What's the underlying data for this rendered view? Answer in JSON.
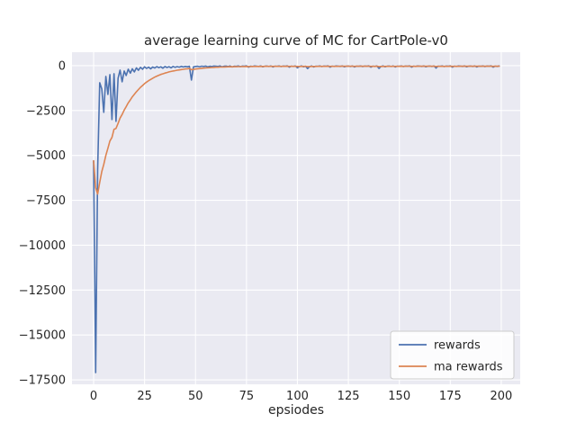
{
  "chart_data": {
    "type": "line",
    "title": "average learning curve of MC for CartPole-v0",
    "xlabel": "epsiodes",
    "ylabel": "",
    "grid": true,
    "axes_background": "#EAEAF2",
    "grid_color": "#FFFFFF",
    "text_color": "#262626",
    "xlim": [
      -10.6,
      209.3
    ],
    "ylim": [
      -17750,
      750
    ],
    "x_ticks": [
      0,
      25,
      50,
      75,
      100,
      125,
      150,
      175,
      200
    ],
    "y_ticks": [
      0,
      -2500,
      -5000,
      -7500,
      -10000,
      -12500,
      -15000,
      -17500
    ],
    "legend": {
      "position": "lower right",
      "entries": [
        "rewards",
        "ma rewards"
      ]
    },
    "x": {
      "start": 0,
      "end": 199,
      "step": 1
    },
    "series": [
      {
        "name": "rewards",
        "color": "#4C72B0",
        "values": [
          -5300,
          -17100,
          -5800,
          -950,
          -1300,
          -2600,
          -600,
          -1600,
          -500,
          -3000,
          -450,
          -3100,
          -700,
          -250,
          -900,
          -300,
          -550,
          -200,
          -420,
          -180,
          -350,
          -120,
          -260,
          -90,
          -200,
          -60,
          -150,
          -80,
          -180,
          -70,
          -130,
          -50,
          -110,
          -60,
          -140,
          -45,
          -100,
          -55,
          -120,
          -40,
          -90,
          -50,
          -80,
          -35,
          -70,
          -40,
          -60,
          -30,
          -800,
          -60,
          -45,
          -30,
          -55,
          -25,
          -40,
          -20,
          -60,
          -30,
          -45,
          -20,
          -25,
          -40,
          -15,
          -60,
          -30,
          -20,
          -45,
          -18,
          -70,
          -25,
          -35,
          -15,
          -50,
          -22,
          -30,
          -12,
          -80,
          -28,
          -40,
          -18,
          -25,
          -40,
          -15,
          -60,
          -30,
          -20,
          -45,
          -18,
          -70,
          -25,
          -35,
          -15,
          -50,
          -22,
          -30,
          -12,
          -80,
          -28,
          -40,
          -18,
          -120,
          -40,
          -15,
          -60,
          -30,
          -160,
          -45,
          -18,
          -70,
          -25,
          -35,
          -15,
          -50,
          -22,
          -30,
          -12,
          -80,
          -28,
          -40,
          -18,
          -25,
          -40,
          -15,
          -60,
          -30,
          -20,
          -45,
          -18,
          -70,
          -25,
          -35,
          -15,
          -50,
          -22,
          -30,
          -12,
          -80,
          -28,
          -40,
          -18,
          -150,
          -40,
          -15,
          -60,
          -30,
          -20,
          -45,
          -18,
          -70,
          -25,
          -35,
          -15,
          -50,
          -22,
          -30,
          -12,
          -80,
          -28,
          -40,
          -18,
          -25,
          -40,
          -15,
          -60,
          -30,
          -20,
          -45,
          -18,
          -130,
          -25,
          -35,
          -15,
          -50,
          -22,
          -30,
          -12,
          -80,
          -28,
          -40,
          -18,
          -25,
          -40,
          -15,
          -60,
          -30,
          -20,
          -45,
          -18,
          -70,
          -25,
          -35,
          -15,
          -50,
          -22,
          -30,
          -12,
          -80,
          -28,
          -40,
          -18
        ]
      },
      {
        "name": "ma rewards",
        "color": "#DD8452",
        "values": [
          -5300,
          -6800,
          -7150,
          -6500,
          -5900,
          -5500,
          -5000,
          -4600,
          -4200,
          -4000,
          -3540,
          -3496,
          -3216,
          -2920,
          -2718,
          -2476,
          -2283,
          -2075,
          -1909,
          -1736,
          -1598,
          -1450,
          -1331,
          -1207,
          -1106,
          -1002,
          -916,
          -833,
          -768,
          -698,
          -641,
          -582,
          -535,
          -487,
          -453,
          -412,
          -381,
          -348,
          -325,
          -297,
          -276,
          -253,
          -236,
          -216,
          -201,
          -185,
          -173,
          -159,
          -223,
          -206,
          -190,
          -174,
          -162,
          -149,
          -138,
          -126,
          -119,
          -110,
          -104,
          -96,
          -89,
          -85,
          -78,
          -76,
          -71,
          -66,
          -64,
          -59,
          -60,
          -57,
          -55,
          -51,
          -51,
          -48,
          -46,
          -43,
          -47,
          -45,
          -44,
          -42,
          -40,
          -40,
          -38,
          -40,
          -39,
          -37,
          -38,
          -36,
          -39,
          -38,
          -37,
          -35,
          -37,
          -35,
          -35,
          -33,
          -38,
          -37,
          -37,
          -35,
          -43,
          -41,
          -40,
          -38,
          -37,
          -49,
          -46,
          -44,
          -42,
          -40,
          -39,
          -37,
          -38,
          -36,
          -36,
          -34,
          -39,
          -38,
          -38,
          -36,
          -35,
          -34,
          -34,
          -33,
          -33,
          -32,
          -33,
          -32,
          -35,
          -34,
          -34,
          -32,
          -34,
          -33,
          -33,
          -31,
          -36,
          -35,
          -35,
          -34,
          -45,
          -43,
          -40,
          -38,
          -38,
          -36,
          -37,
          -35,
          -38,
          -37,
          -36,
          -34,
          -36,
          -34,
          -34,
          -32,
          -37,
          -36,
          -36,
          -34,
          -33,
          -32,
          -33,
          -32,
          -32,
          -31,
          -32,
          -31,
          -41,
          -39,
          -38,
          -36,
          -37,
          -35,
          -35,
          -33,
          -38,
          -37,
          -37,
          -35,
          -34,
          -33,
          -33,
          -32,
          -32,
          -31,
          -32,
          -31,
          -34,
          -33,
          -33,
          -31,
          -33,
          -32,
          -32,
          -30,
          -35,
          -34,
          -34,
          -33
        ]
      }
    ]
  }
}
